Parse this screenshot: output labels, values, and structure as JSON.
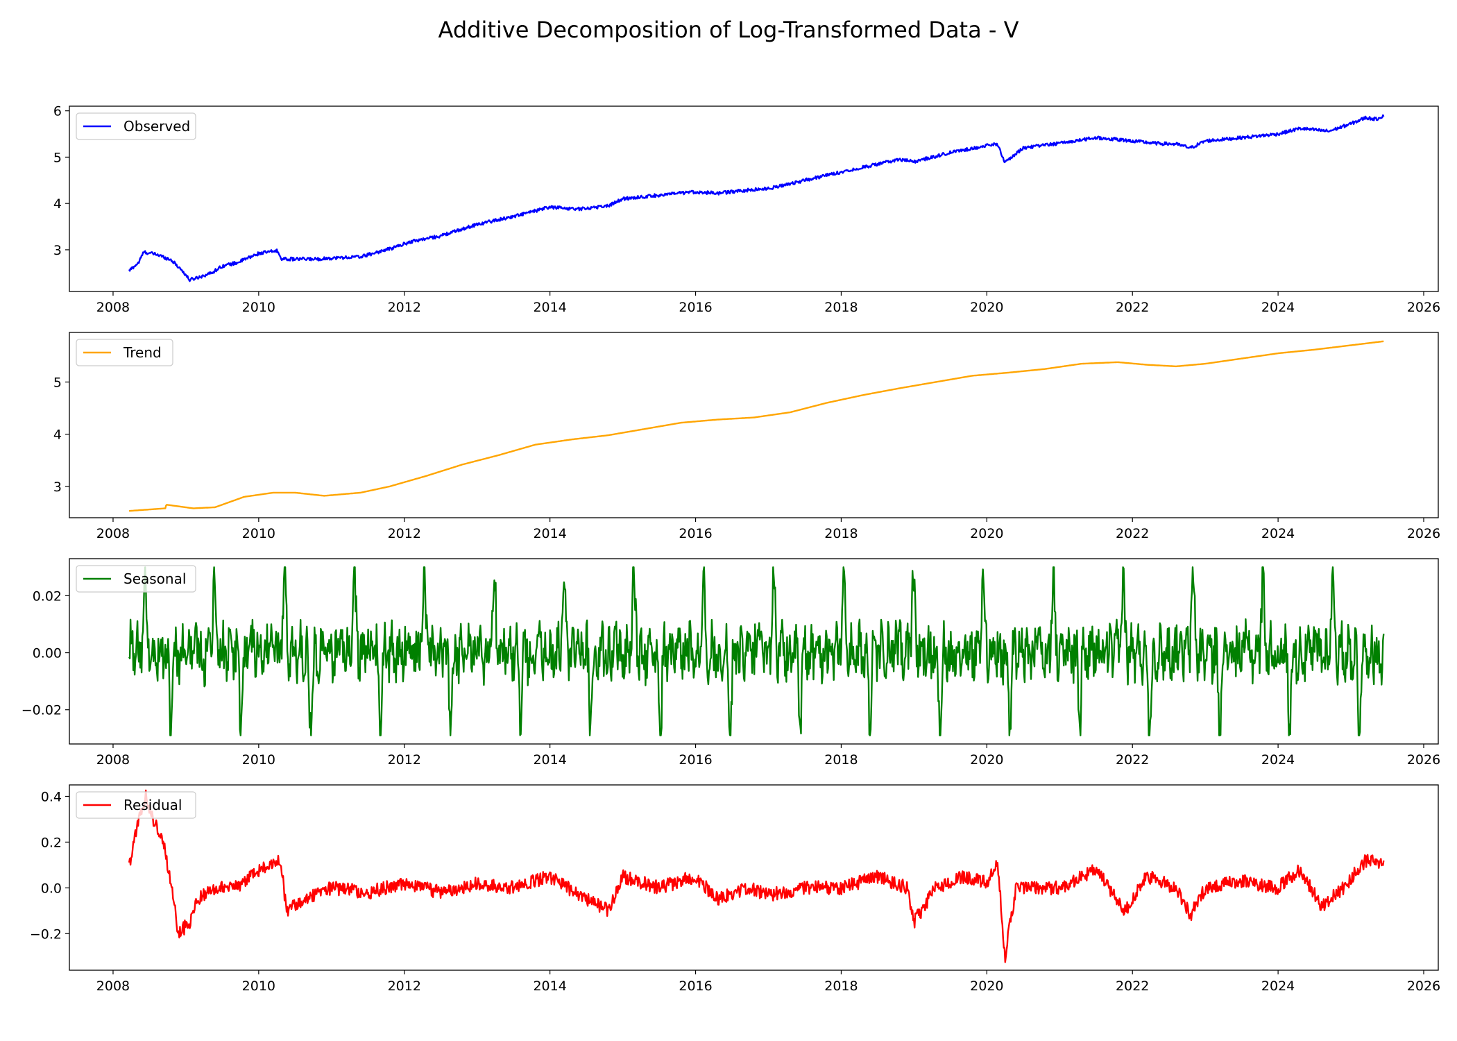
{
  "figure_title": "Additive Decomposition of Log-Transformed Data - V",
  "chart_data": [
    {
      "type": "line",
      "title": "",
      "xlabel": "",
      "ylabel": "",
      "series": [
        {
          "name": "Observed",
          "color": "#0000ff"
        }
      ],
      "xlim": [
        2007.4,
        2026.2
      ],
      "ylim": [
        2.1,
        6.1
      ],
      "xticks": [
        2008,
        2010,
        2012,
        2014,
        2016,
        2018,
        2020,
        2022,
        2024,
        2026
      ],
      "yticks": [
        3,
        4,
        5,
        6
      ],
      "ytick_labels": [
        "3",
        "4",
        "5",
        "6"
      ],
      "legend_loc": "upper left",
      "anchors": [
        [
          2008.22,
          2.55
        ],
        [
          2008.35,
          2.72
        ],
        [
          2008.42,
          2.95
        ],
        [
          2008.6,
          2.9
        ],
        [
          2008.8,
          2.78
        ],
        [
          2008.95,
          2.55
        ],
        [
          2009.05,
          2.35
        ],
        [
          2009.2,
          2.42
        ],
        [
          2009.35,
          2.5
        ],
        [
          2009.5,
          2.65
        ],
        [
          2009.7,
          2.72
        ],
        [
          2010.0,
          2.92
        ],
        [
          2010.25,
          2.98
        ],
        [
          2010.32,
          2.8
        ],
        [
          2010.5,
          2.8
        ],
        [
          2010.8,
          2.8
        ],
        [
          2011.0,
          2.82
        ],
        [
          2011.4,
          2.85
        ],
        [
          2011.8,
          3.02
        ],
        [
          2012.1,
          3.18
        ],
        [
          2012.5,
          3.3
        ],
        [
          2013.0,
          3.55
        ],
        [
          2013.5,
          3.72
        ],
        [
          2014.0,
          3.92
        ],
        [
          2014.4,
          3.88
        ],
        [
          2014.8,
          3.95
        ],
        [
          2015.0,
          4.1
        ],
        [
          2015.5,
          4.18
        ],
        [
          2016.0,
          4.25
        ],
        [
          2016.3,
          4.22
        ],
        [
          2016.8,
          4.3
        ],
        [
          2017.0,
          4.32
        ],
        [
          2017.5,
          4.5
        ],
        [
          2018.0,
          4.68
        ],
        [
          2018.5,
          4.85
        ],
        [
          2018.8,
          4.95
        ],
        [
          2019.0,
          4.9
        ],
        [
          2019.5,
          5.1
        ],
        [
          2020.0,
          5.25
        ],
        [
          2020.15,
          5.28
        ],
        [
          2020.25,
          4.88
        ],
        [
          2020.5,
          5.2
        ],
        [
          2021.0,
          5.3
        ],
        [
          2021.5,
          5.42
        ],
        [
          2021.8,
          5.38
        ],
        [
          2022.0,
          5.35
        ],
        [
          2022.3,
          5.3
        ],
        [
          2022.6,
          5.28
        ],
        [
          2022.8,
          5.2
        ],
        [
          2023.0,
          5.35
        ],
        [
          2023.5,
          5.42
        ],
        [
          2024.0,
          5.5
        ],
        [
          2024.3,
          5.62
        ],
        [
          2024.7,
          5.56
        ],
        [
          2025.0,
          5.72
        ],
        [
          2025.2,
          5.85
        ],
        [
          2025.35,
          5.82
        ],
        [
          2025.45,
          5.9
        ]
      ],
      "noise": 0.035,
      "x_start": 2008.22,
      "x_end": 2025.45
    },
    {
      "type": "line",
      "title": "",
      "xlabel": "",
      "ylabel": "",
      "series": [
        {
          "name": "Trend",
          "color": "#ffa500"
        }
      ],
      "xlim": [
        2007.4,
        2026.2
      ],
      "ylim": [
        2.4,
        5.95
      ],
      "xticks": [
        2008,
        2010,
        2012,
        2014,
        2016,
        2018,
        2020,
        2022,
        2024,
        2026
      ],
      "yticks": [
        3,
        4,
        5
      ],
      "ytick_labels": [
        "3",
        "4",
        "5"
      ],
      "legend_loc": "upper left",
      "anchors": [
        [
          2008.22,
          2.53
        ],
        [
          2008.72,
          2.58
        ],
        [
          2008.73,
          2.65
        ],
        [
          2009.1,
          2.58
        ],
        [
          2009.4,
          2.6
        ],
        [
          2009.8,
          2.8
        ],
        [
          2010.2,
          2.88
        ],
        [
          2010.5,
          2.88
        ],
        [
          2010.9,
          2.82
        ],
        [
          2011.4,
          2.88
        ],
        [
          2011.8,
          3.0
        ],
        [
          2012.3,
          3.2
        ],
        [
          2012.8,
          3.42
        ],
        [
          2013.3,
          3.6
        ],
        [
          2013.8,
          3.8
        ],
        [
          2014.3,
          3.9
        ],
        [
          2014.8,
          3.98
        ],
        [
          2015.3,
          4.1
        ],
        [
          2015.8,
          4.22
        ],
        [
          2016.3,
          4.28
        ],
        [
          2016.8,
          4.32
        ],
        [
          2017.3,
          4.42
        ],
        [
          2017.8,
          4.6
        ],
        [
          2018.3,
          4.75
        ],
        [
          2018.8,
          4.88
        ],
        [
          2019.3,
          5.0
        ],
        [
          2019.8,
          5.12
        ],
        [
          2020.3,
          5.18
        ],
        [
          2020.8,
          5.25
        ],
        [
          2021.3,
          5.35
        ],
        [
          2021.8,
          5.38
        ],
        [
          2022.2,
          5.33
        ],
        [
          2022.6,
          5.3
        ],
        [
          2023.0,
          5.35
        ],
        [
          2023.5,
          5.45
        ],
        [
          2024.0,
          5.55
        ],
        [
          2024.5,
          5.62
        ],
        [
          2025.45,
          5.78
        ]
      ],
      "noise": 0.0,
      "x_start": 2008.22,
      "x_end": 2025.45
    },
    {
      "type": "line",
      "title": "",
      "xlabel": "",
      "ylabel": "",
      "series": [
        {
          "name": "Seasonal",
          "color": "#008000"
        }
      ],
      "xlim": [
        2007.4,
        2026.2
      ],
      "ylim": [
        -0.032,
        0.033
      ],
      "xticks": [
        2008,
        2010,
        2012,
        2014,
        2016,
        2018,
        2020,
        2022,
        2024,
        2026
      ],
      "yticks": [
        -0.02,
        0.0,
        0.02
      ],
      "ytick_labels": [
        "−0.02",
        "0.00",
        "0.02"
      ],
      "legend_loc": "upper left",
      "period": 0.96,
      "amplitude_range": [
        -0.029,
        0.03
      ],
      "x_start": 2008.22,
      "x_end": 2025.45
    },
    {
      "type": "line",
      "title": "",
      "xlabel": "",
      "ylabel": "",
      "series": [
        {
          "name": "Residual",
          "color": "#ff0000"
        }
      ],
      "xlim": [
        2007.4,
        2026.2
      ],
      "ylim": [
        -0.36,
        0.45
      ],
      "xticks": [
        2008,
        2010,
        2012,
        2014,
        2016,
        2018,
        2020,
        2022,
        2024,
        2026
      ],
      "yticks": [
        -0.2,
        0.0,
        0.2,
        0.4
      ],
      "ytick_labels": [
        "−0.2",
        "0.0",
        "0.2",
        "0.4"
      ],
      "legend_loc": "upper left",
      "anchors": [
        [
          2008.22,
          0.1
        ],
        [
          2008.35,
          0.3
        ],
        [
          2008.45,
          0.4
        ],
        [
          2008.55,
          0.3
        ],
        [
          2008.7,
          0.2
        ],
        [
          2008.8,
          0.0
        ],
        [
          2008.9,
          -0.2
        ],
        [
          2009.05,
          -0.15
        ],
        [
          2009.15,
          -0.05
        ],
        [
          2009.4,
          0.0
        ],
        [
          2009.8,
          0.02
        ],
        [
          2010.0,
          0.08
        ],
        [
          2010.3,
          0.12
        ],
        [
          2010.38,
          -0.1
        ],
        [
          2010.6,
          -0.05
        ],
        [
          2011.0,
          0.0
        ],
        [
          2011.5,
          -0.02
        ],
        [
          2012.0,
          0.02
        ],
        [
          2012.5,
          -0.02
        ],
        [
          2013.0,
          0.02
        ],
        [
          2013.5,
          0.0
        ],
        [
          2014.0,
          0.05
        ],
        [
          2014.4,
          -0.03
        ],
        [
          2014.8,
          -0.1
        ],
        [
          2015.0,
          0.05
        ],
        [
          2015.5,
          0.0
        ],
        [
          2016.0,
          0.05
        ],
        [
          2016.3,
          -0.05
        ],
        [
          2016.7,
          0.0
        ],
        [
          2017.0,
          -0.03
        ],
        [
          2017.5,
          0.0
        ],
        [
          2018.0,
          0.0
        ],
        [
          2018.5,
          0.05
        ],
        [
          2018.9,
          0.0
        ],
        [
          2019.0,
          -0.15
        ],
        [
          2019.3,
          0.0
        ],
        [
          2019.7,
          0.05
        ],
        [
          2020.0,
          0.02
        ],
        [
          2020.15,
          0.1
        ],
        [
          2020.25,
          -0.3
        ],
        [
          2020.4,
          0.0
        ],
        [
          2021.0,
          0.0
        ],
        [
          2021.5,
          0.08
        ],
        [
          2021.9,
          -0.1
        ],
        [
          2022.2,
          0.05
        ],
        [
          2022.6,
          0.0
        ],
        [
          2022.8,
          -0.12
        ],
        [
          2023.0,
          0.0
        ],
        [
          2023.5,
          0.03
        ],
        [
          2024.0,
          0.0
        ],
        [
          2024.3,
          0.08
        ],
        [
          2024.6,
          -0.08
        ],
        [
          2024.9,
          0.0
        ],
        [
          2025.2,
          0.12
        ],
        [
          2025.45,
          0.1
        ]
      ],
      "noise": 0.03,
      "x_start": 2008.22,
      "x_end": 2025.45
    }
  ]
}
